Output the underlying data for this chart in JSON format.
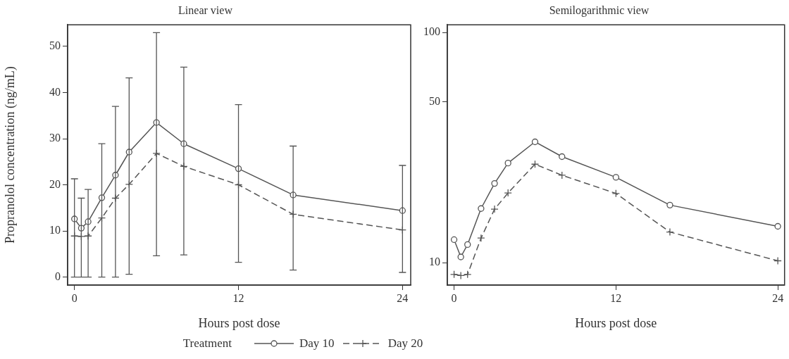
{
  "chart_data": [
    {
      "type": "line",
      "title": "Linear view",
      "xlabel": "Hours post dose",
      "ylabel": "Propranolol concentration (ng/mL)",
      "legend": "bottom",
      "legend_title": "Treatment",
      "x": [
        0,
        0.5,
        1,
        2,
        3,
        4,
        6,
        8,
        12,
        16,
        24
      ],
      "xlim": [
        -0.5,
        24.6
      ],
      "xticks": [
        0,
        12,
        24
      ],
      "ylim": [
        -1.75,
        54.7
      ],
      "yticks": [
        0,
        10,
        20,
        30,
        40,
        50
      ],
      "grid": false,
      "series": [
        {
          "name": "Day 10",
          "color": "#555555",
          "marker": "circle",
          "line_style": "solid",
          "values": [
            12.6,
            10.6,
            12.0,
            17.2,
            22.1,
            27.1,
            33.5,
            28.9,
            23.5,
            17.8,
            14.4
          ],
          "errors": [
            [
              0,
              21.3
            ],
            [
              0,
              17.1
            ],
            [
              0,
              19.0
            ],
            [
              0,
              28.9
            ],
            [
              0,
              37.0
            ],
            [
              0.6,
              43.2
            ],
            [
              4.6,
              53.0
            ],
            [
              4.8,
              45.5
            ],
            [
              3.2,
              37.4
            ],
            [
              1.5,
              28.4
            ],
            [
              1.0,
              24.2
            ]
          ]
        },
        {
          "name": "Day 20",
          "color": "#555555",
          "marker": "cross",
          "line_style": "dashed",
          "values": [
            8.9,
            8.8,
            8.9,
            12.8,
            17.1,
            20.1,
            26.8,
            24.0,
            20.0,
            13.6,
            10.2
          ]
        }
      ]
    },
    {
      "type": "line",
      "title": "Semilogarithmic view",
      "xlabel": "Hours post dose",
      "log": "y",
      "x": [
        0,
        0.5,
        1,
        2,
        3,
        4,
        6,
        8,
        12,
        16,
        24
      ],
      "xlim": [
        -0.5,
        24.5
      ],
      "xticks": [
        0,
        12,
        24
      ],
      "ylim": [
        8,
        108
      ],
      "yticks": [
        10,
        50,
        100
      ],
      "grid": false,
      "series": [
        {
          "color": "#555555",
          "marker": "circle",
          "line_style": "solid",
          "values": [
            12.6,
            10.6,
            12.0,
            17.2,
            22.1,
            27.1,
            33.5,
            28.9,
            23.5,
            17.8,
            14.4
          ]
        },
        {
          "color": "#555555",
          "marker": "cross",
          "line_style": "dashed",
          "values": [
            8.9,
            8.8,
            8.9,
            12.8,
            17.1,
            20.1,
            26.8,
            24.0,
            20.0,
            13.6,
            10.2
          ]
        }
      ]
    }
  ]
}
